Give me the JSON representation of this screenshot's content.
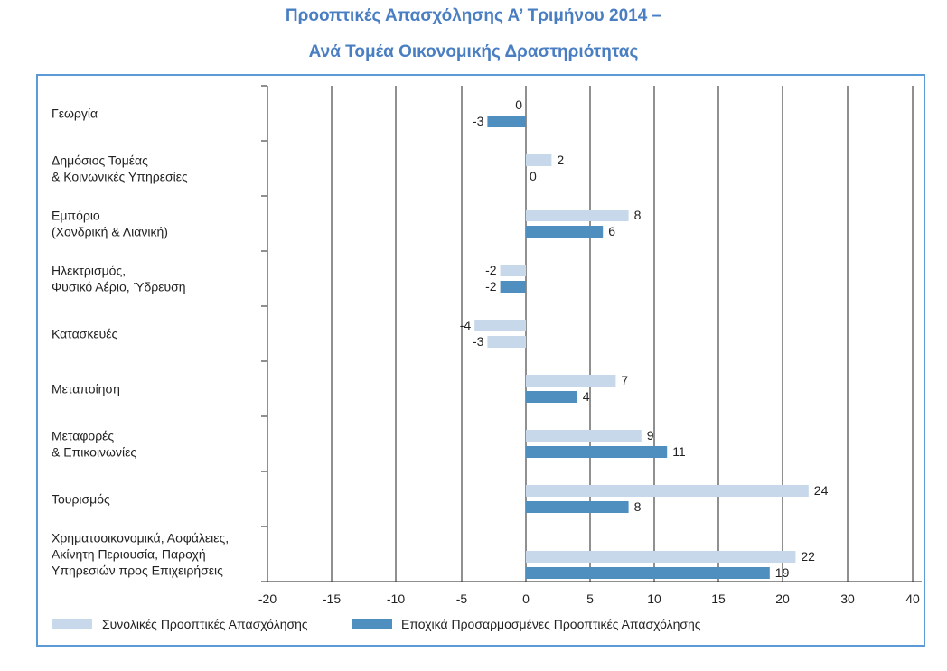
{
  "title_line1": "Προοπτικές Απασχόλησης Α’ Τριμήνου 2014 –",
  "title_line2": "Ανά Τομέα Οικονομικής Δραστηριότητας",
  "colors": {
    "title": "#4a7ec2",
    "frame": "#5b9ad6",
    "series1": "#c6d8ea",
    "series2": "#4f8fc0",
    "grid": "#222222"
  },
  "chart_data": {
    "type": "bar",
    "orientation": "horizontal",
    "categories": [
      [
        "Γεωργία"
      ],
      [
        "Δημόσιος Τομέας",
        "& Κοινωνικές Υπηρεσίες"
      ],
      [
        "Εμπόριο",
        "(Χονδρική & Λιανική)"
      ],
      [
        "Ηλεκτρισμός,",
        "Φυσικό Αέριο, Ύδρευση"
      ],
      [
        "Κατασκευές"
      ],
      [
        "Μεταποίηση"
      ],
      [
        "Μεταφορές",
        "& Επικοινωνίες"
      ],
      [
        "Τουρισμός"
      ],
      [
        "Χρηματοοικονομικά, Ασφάλειες,",
        "Ακίνητη Περιουσία, Παροχή",
        "Υπηρεσιών προς Επιχειρήσεις"
      ]
    ],
    "series": [
      {
        "name": "Συνολικές Προοπτικές Απασχόλησης",
        "color": "#c6d8ea",
        "values": [
          0,
          2,
          8,
          -2,
          -4,
          7,
          9,
          24,
          22
        ]
      },
      {
        "name": "Εποχικά Προσαρμοσμένες Προοπτικές Απασχόλησης",
        "color": "#4f8fc0",
        "values": [
          -3,
          0,
          6,
          -2,
          -3,
          4,
          11,
          8,
          19
        ]
      }
    ],
    "bar_colors_override": {
      "1": {
        "4": "#c6d8ea"
      }
    },
    "xlim": [
      -20,
      40
    ],
    "xticks": [
      "-20",
      "-15",
      "-10",
      "-5",
      "0",
      "5",
      "10",
      "15",
      "20",
      "30",
      "40"
    ],
    "grid": true,
    "legend": "bottom"
  }
}
